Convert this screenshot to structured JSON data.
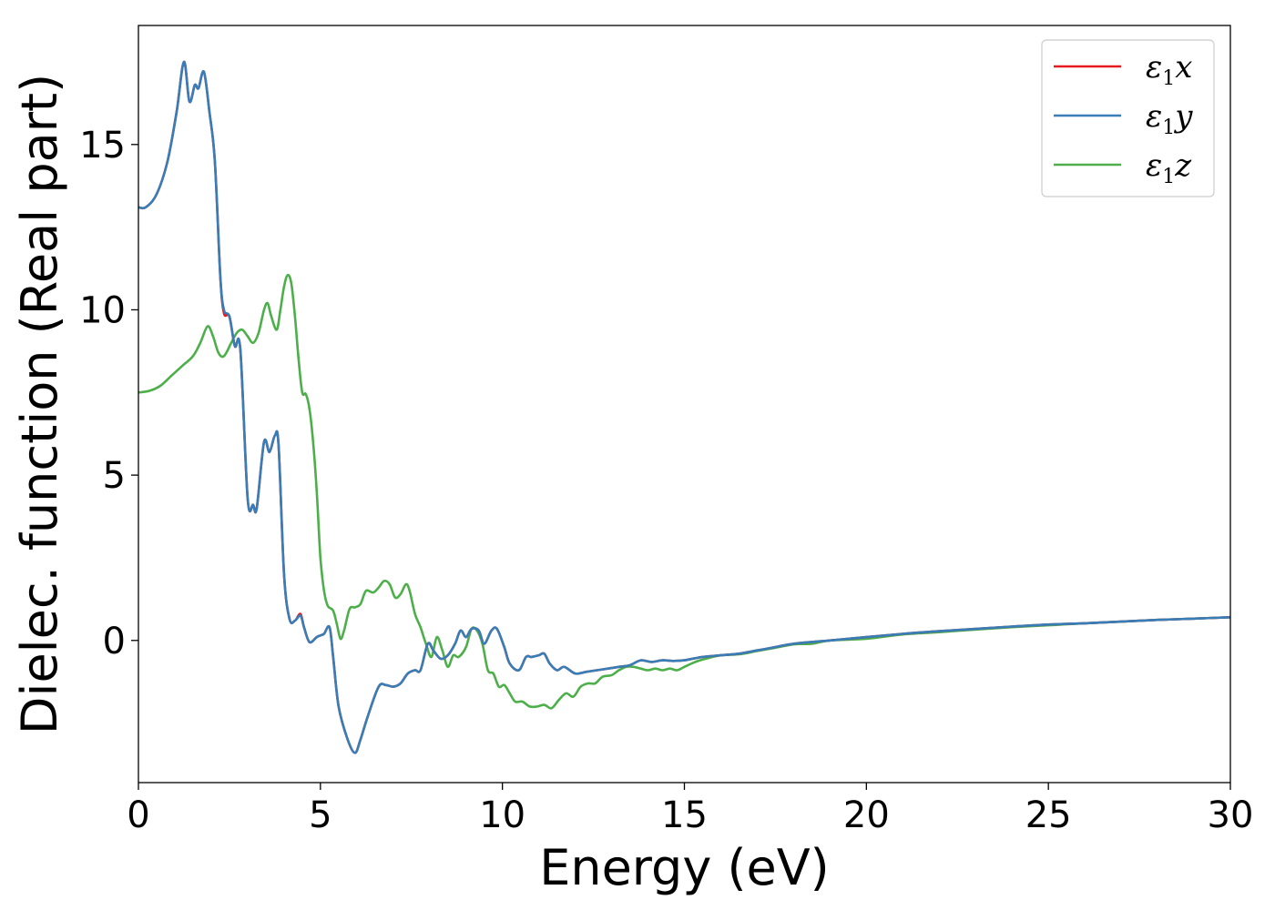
{
  "chart_data": {
    "type": "line",
    "xlabel": "Energy (eV)",
    "ylabel": "Dielec. function (Real part)",
    "xlim": [
      0,
      30
    ],
    "ylim": [
      -4.3,
      18.6
    ],
    "xticks": [
      0,
      5,
      10,
      15,
      20,
      25,
      30
    ],
    "yticks": [
      0,
      5,
      10,
      15
    ],
    "grid": false,
    "legend_position": "top-right",
    "series": [
      {
        "name": "ε₁x",
        "legend": {
          "symbol": "ε",
          "sub": "1",
          "axis": "x"
        },
        "color": "#e41a1c",
        "points": [
          [
            0,
            13.1
          ],
          [
            0.2,
            13.1
          ],
          [
            0.5,
            13.5
          ],
          [
            0.8,
            14.5
          ],
          [
            1.05,
            16.0
          ],
          [
            1.25,
            17.5
          ],
          [
            1.4,
            16.3
          ],
          [
            1.55,
            16.8
          ],
          [
            1.65,
            16.7
          ],
          [
            1.8,
            17.2
          ],
          [
            1.95,
            16.0
          ],
          [
            2.1,
            14.5
          ],
          [
            2.25,
            11.0
          ],
          [
            2.35,
            9.9
          ],
          [
            2.5,
            9.8
          ],
          [
            2.65,
            8.9
          ],
          [
            2.8,
            8.8
          ],
          [
            3.0,
            4.3
          ],
          [
            3.15,
            4.1
          ],
          [
            3.25,
            4.0
          ],
          [
            3.45,
            6.0
          ],
          [
            3.6,
            5.7
          ],
          [
            3.75,
            6.2
          ],
          [
            3.85,
            5.9
          ],
          [
            4.0,
            2.0
          ],
          [
            4.15,
            0.65
          ],
          [
            4.3,
            0.6
          ],
          [
            4.45,
            0.8
          ],
          [
            4.55,
            0.4
          ],
          [
            4.7,
            -0.05
          ],
          [
            4.9,
            0.1
          ],
          [
            5.0,
            0.15
          ],
          [
            5.1,
            0.2
          ],
          [
            5.25,
            0.4
          ],
          [
            5.35,
            -0.5
          ],
          [
            5.5,
            -2.0
          ],
          [
            5.75,
            -3.0
          ],
          [
            5.95,
            -3.4
          ],
          [
            6.1,
            -3.0
          ],
          [
            6.3,
            -2.3
          ],
          [
            6.6,
            -1.4
          ],
          [
            6.8,
            -1.35
          ],
          [
            7.0,
            -1.4
          ],
          [
            7.2,
            -1.3
          ],
          [
            7.4,
            -1.0
          ],
          [
            7.6,
            -0.9
          ],
          [
            7.75,
            -0.9
          ],
          [
            7.95,
            -0.1
          ],
          [
            8.1,
            -0.3
          ],
          [
            8.3,
            -0.55
          ],
          [
            8.5,
            -0.45
          ],
          [
            8.7,
            -0.1
          ],
          [
            8.85,
            0.3
          ],
          [
            9.0,
            0.1
          ],
          [
            9.15,
            0.35
          ],
          [
            9.35,
            0.3
          ],
          [
            9.5,
            -0.1
          ],
          [
            9.7,
            0.3
          ],
          [
            9.85,
            0.35
          ],
          [
            10.05,
            -0.2
          ],
          [
            10.2,
            -0.7
          ],
          [
            10.45,
            -0.9
          ],
          [
            10.65,
            -0.5
          ],
          [
            10.8,
            -0.5
          ],
          [
            11.0,
            -0.45
          ],
          [
            11.15,
            -0.4
          ],
          [
            11.3,
            -0.7
          ],
          [
            11.5,
            -0.9
          ],
          [
            11.7,
            -0.8
          ],
          [
            12.0,
            -1.0
          ],
          [
            12.3,
            -0.95
          ],
          [
            12.6,
            -0.9
          ],
          [
            12.9,
            -0.85
          ],
          [
            13.2,
            -0.8
          ],
          [
            13.5,
            -0.75
          ],
          [
            13.8,
            -0.6
          ],
          [
            14.1,
            -0.65
          ],
          [
            14.4,
            -0.6
          ],
          [
            14.7,
            -0.62
          ],
          [
            15.0,
            -0.6
          ],
          [
            15.5,
            -0.5
          ],
          [
            16.0,
            -0.45
          ],
          [
            16.5,
            -0.4
          ],
          [
            17.0,
            -0.3
          ],
          [
            17.5,
            -0.2
          ],
          [
            18.0,
            -0.1
          ],
          [
            19.0,
            0.0
          ],
          [
            20.0,
            0.1
          ],
          [
            21.0,
            0.2
          ],
          [
            22.0,
            0.28
          ],
          [
            23.0,
            0.35
          ],
          [
            24.0,
            0.42
          ],
          [
            25.0,
            0.48
          ],
          [
            26.0,
            0.52
          ],
          [
            27.0,
            0.57
          ],
          [
            28.0,
            0.62
          ],
          [
            29.0,
            0.66
          ],
          [
            30.0,
            0.7
          ]
        ]
      },
      {
        "name": "ε₁y",
        "legend": {
          "symbol": "ε",
          "sub": "1",
          "axis": "y"
        },
        "color": "#377eb8",
        "points": [
          [
            0,
            13.1
          ],
          [
            0.2,
            13.1
          ],
          [
            0.5,
            13.5
          ],
          [
            0.8,
            14.5
          ],
          [
            1.05,
            16.0
          ],
          [
            1.25,
            17.5
          ],
          [
            1.4,
            16.3
          ],
          [
            1.55,
            16.8
          ],
          [
            1.65,
            16.7
          ],
          [
            1.8,
            17.2
          ],
          [
            1.95,
            16.0
          ],
          [
            2.1,
            14.5
          ],
          [
            2.25,
            11.0
          ],
          [
            2.35,
            10.0
          ],
          [
            2.5,
            9.8
          ],
          [
            2.65,
            8.9
          ],
          [
            2.8,
            8.8
          ],
          [
            3.0,
            4.3
          ],
          [
            3.15,
            4.1
          ],
          [
            3.25,
            4.0
          ],
          [
            3.45,
            6.0
          ],
          [
            3.6,
            5.7
          ],
          [
            3.75,
            6.2
          ],
          [
            3.85,
            5.9
          ],
          [
            4.0,
            2.0
          ],
          [
            4.15,
            0.65
          ],
          [
            4.3,
            0.6
          ],
          [
            4.45,
            0.75
          ],
          [
            4.55,
            0.4
          ],
          [
            4.7,
            -0.05
          ],
          [
            4.9,
            0.1
          ],
          [
            5.0,
            0.15
          ],
          [
            5.1,
            0.2
          ],
          [
            5.25,
            0.4
          ],
          [
            5.35,
            -0.5
          ],
          [
            5.5,
            -2.0
          ],
          [
            5.75,
            -3.0
          ],
          [
            5.95,
            -3.4
          ],
          [
            6.1,
            -3.0
          ],
          [
            6.3,
            -2.3
          ],
          [
            6.6,
            -1.4
          ],
          [
            6.8,
            -1.35
          ],
          [
            7.0,
            -1.4
          ],
          [
            7.2,
            -1.3
          ],
          [
            7.4,
            -1.0
          ],
          [
            7.6,
            -0.9
          ],
          [
            7.75,
            -0.9
          ],
          [
            7.95,
            -0.1
          ],
          [
            8.1,
            -0.3
          ],
          [
            8.3,
            -0.55
          ],
          [
            8.5,
            -0.45
          ],
          [
            8.7,
            -0.1
          ],
          [
            8.85,
            0.3
          ],
          [
            9.0,
            0.1
          ],
          [
            9.15,
            0.35
          ],
          [
            9.35,
            0.3
          ],
          [
            9.5,
            -0.1
          ],
          [
            9.7,
            0.3
          ],
          [
            9.85,
            0.35
          ],
          [
            10.05,
            -0.2
          ],
          [
            10.2,
            -0.7
          ],
          [
            10.45,
            -0.9
          ],
          [
            10.65,
            -0.5
          ],
          [
            10.8,
            -0.5
          ],
          [
            11.0,
            -0.45
          ],
          [
            11.15,
            -0.4
          ],
          [
            11.3,
            -0.7
          ],
          [
            11.5,
            -0.9
          ],
          [
            11.7,
            -0.8
          ],
          [
            12.0,
            -1.0
          ],
          [
            12.3,
            -0.95
          ],
          [
            12.6,
            -0.9
          ],
          [
            12.9,
            -0.85
          ],
          [
            13.2,
            -0.8
          ],
          [
            13.5,
            -0.75
          ],
          [
            13.8,
            -0.6
          ],
          [
            14.1,
            -0.65
          ],
          [
            14.4,
            -0.6
          ],
          [
            14.7,
            -0.62
          ],
          [
            15.0,
            -0.6
          ],
          [
            15.5,
            -0.5
          ],
          [
            16.0,
            -0.45
          ],
          [
            16.5,
            -0.4
          ],
          [
            17.0,
            -0.3
          ],
          [
            17.5,
            -0.2
          ],
          [
            18.0,
            -0.1
          ],
          [
            19.0,
            0.0
          ],
          [
            20.0,
            0.1
          ],
          [
            21.0,
            0.2
          ],
          [
            22.0,
            0.28
          ],
          [
            23.0,
            0.35
          ],
          [
            24.0,
            0.42
          ],
          [
            25.0,
            0.48
          ],
          [
            26.0,
            0.52
          ],
          [
            27.0,
            0.57
          ],
          [
            28.0,
            0.62
          ],
          [
            29.0,
            0.66
          ],
          [
            30.0,
            0.7
          ]
        ]
      },
      {
        "name": "ε₁z",
        "legend": {
          "symbol": "ε",
          "sub": "1",
          "axis": "z"
        },
        "color": "#4daf4a",
        "points": [
          [
            0,
            7.5
          ],
          [
            0.3,
            7.55
          ],
          [
            0.6,
            7.7
          ],
          [
            0.9,
            8.0
          ],
          [
            1.2,
            8.3
          ],
          [
            1.5,
            8.6
          ],
          [
            1.7,
            9.0
          ],
          [
            1.9,
            9.5
          ],
          [
            2.05,
            9.2
          ],
          [
            2.2,
            8.7
          ],
          [
            2.35,
            8.6
          ],
          [
            2.55,
            9.0
          ],
          [
            2.7,
            9.3
          ],
          [
            2.85,
            9.4
          ],
          [
            3.0,
            9.2
          ],
          [
            3.15,
            9.0
          ],
          [
            3.3,
            9.3
          ],
          [
            3.45,
            10.0
          ],
          [
            3.55,
            10.2
          ],
          [
            3.65,
            9.8
          ],
          [
            3.8,
            9.4
          ],
          [
            3.9,
            10.0
          ],
          [
            4.0,
            10.7
          ],
          [
            4.1,
            11.05
          ],
          [
            4.2,
            10.8
          ],
          [
            4.3,
            9.8
          ],
          [
            4.4,
            8.5
          ],
          [
            4.5,
            7.5
          ],
          [
            4.6,
            7.45
          ],
          [
            4.7,
            7.0
          ],
          [
            4.8,
            6.0
          ],
          [
            4.9,
            4.5
          ],
          [
            5.0,
            2.5
          ],
          [
            5.1,
            1.5
          ],
          [
            5.2,
            1.05
          ],
          [
            5.35,
            0.9
          ],
          [
            5.45,
            0.5
          ],
          [
            5.55,
            0.05
          ],
          [
            5.65,
            0.3
          ],
          [
            5.8,
            0.95
          ],
          [
            5.95,
            1.0
          ],
          [
            6.1,
            1.1
          ],
          [
            6.25,
            1.5
          ],
          [
            6.45,
            1.45
          ],
          [
            6.6,
            1.6
          ],
          [
            6.75,
            1.8
          ],
          [
            6.9,
            1.7
          ],
          [
            7.05,
            1.3
          ],
          [
            7.2,
            1.4
          ],
          [
            7.35,
            1.7
          ],
          [
            7.45,
            1.5
          ],
          [
            7.6,
            0.8
          ],
          [
            7.75,
            0.4
          ],
          [
            7.9,
            -0.1
          ],
          [
            8.05,
            -0.5
          ],
          [
            8.2,
            0.1
          ],
          [
            8.35,
            -0.3
          ],
          [
            8.5,
            -0.8
          ],
          [
            8.65,
            -0.45
          ],
          [
            8.8,
            -0.5
          ],
          [
            9.0,
            -0.2
          ],
          [
            9.15,
            0.35
          ],
          [
            9.3,
            0.3
          ],
          [
            9.45,
            -0.1
          ],
          [
            9.6,
            -0.9
          ],
          [
            9.75,
            -1.0
          ],
          [
            9.9,
            -1.4
          ],
          [
            10.05,
            -1.35
          ],
          [
            10.2,
            -1.6
          ],
          [
            10.35,
            -1.85
          ],
          [
            10.55,
            -1.85
          ],
          [
            10.75,
            -2.0
          ],
          [
            10.95,
            -2.0
          ],
          [
            11.15,
            -1.95
          ],
          [
            11.35,
            -2.05
          ],
          [
            11.55,
            -1.8
          ],
          [
            11.75,
            -1.6
          ],
          [
            11.95,
            -1.7
          ],
          [
            12.15,
            -1.4
          ],
          [
            12.35,
            -1.3
          ],
          [
            12.55,
            -1.3
          ],
          [
            12.75,
            -1.1
          ],
          [
            13.0,
            -1.05
          ],
          [
            13.2,
            -0.9
          ],
          [
            13.4,
            -0.8
          ],
          [
            13.6,
            -0.8
          ],
          [
            13.8,
            -0.85
          ],
          [
            14.0,
            -0.9
          ],
          [
            14.2,
            -0.85
          ],
          [
            14.4,
            -0.9
          ],
          [
            14.6,
            -0.85
          ],
          [
            14.8,
            -0.9
          ],
          [
            15.0,
            -0.8
          ],
          [
            15.3,
            -0.65
          ],
          [
            15.6,
            -0.55
          ],
          [
            16.0,
            -0.45
          ],
          [
            16.5,
            -0.42
          ],
          [
            17.0,
            -0.32
          ],
          [
            17.5,
            -0.22
          ],
          [
            18.0,
            -0.12
          ],
          [
            18.5,
            -0.1
          ],
          [
            19.0,
            0.0
          ],
          [
            20.0,
            0.05
          ],
          [
            21.0,
            0.18
          ],
          [
            22.0,
            0.25
          ],
          [
            23.0,
            0.33
          ],
          [
            24.0,
            0.4
          ],
          [
            25.0,
            0.46
          ],
          [
            26.0,
            0.52
          ],
          [
            27.0,
            0.57
          ],
          [
            28.0,
            0.62
          ],
          [
            29.0,
            0.66
          ],
          [
            30.0,
            0.7
          ]
        ]
      }
    ]
  }
}
